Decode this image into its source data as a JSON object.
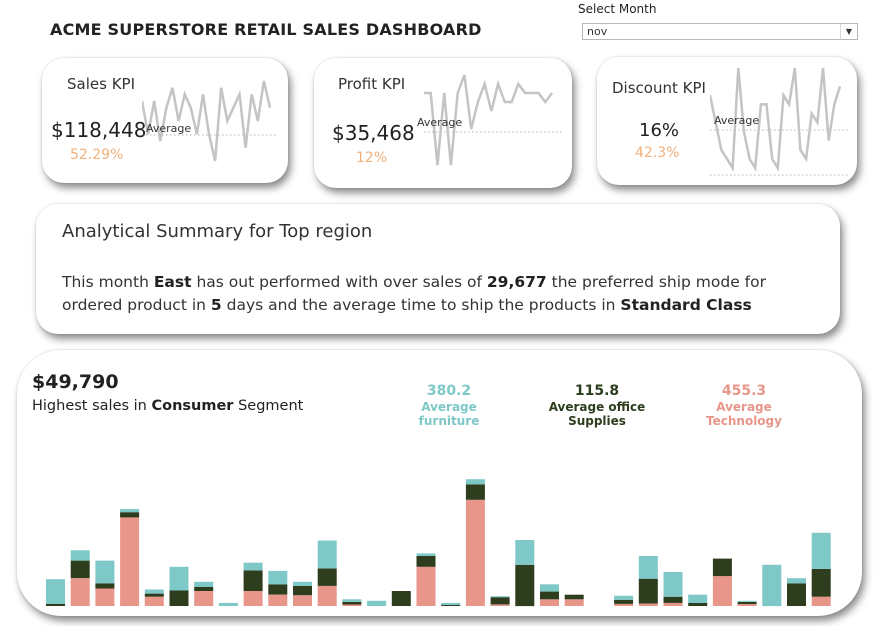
{
  "header": {
    "title": "ACME SUPERSTORE  RETAIL SALES DASHBOARD",
    "select_label": "Select Month",
    "select_value": "nov"
  },
  "kpis": {
    "sales": {
      "label": "Sales KPI",
      "value": "$118,448",
      "pct": "52.29%",
      "avg_label": "Average"
    },
    "profit": {
      "label": "Profit KPI",
      "value": "$35,468",
      "pct": "12%",
      "avg_label": "Average"
    },
    "discount": {
      "label": "Discount KPI",
      "value": "16%",
      "pct": "42.3%",
      "avg_label": "Average"
    }
  },
  "summary": {
    "title": "Analytical Summary for Top region",
    "p1": "This month ",
    "region": "East",
    "p2": " has out performed with over sales of ",
    "sales": "29,677",
    "p3": " the preferred ship mode for ordered product in ",
    "days": "5",
    "p4": " days and the average time to ship the products in ",
    "ship_mode": "Standard Class"
  },
  "segment": {
    "value": "$49,790",
    "text_pre": "Highest sales in ",
    "segment_name": "Consumer",
    "text_post": " Segment"
  },
  "averages": [
    {
      "value": "380.2",
      "label": "Average furniture",
      "color": "#7ec8c8"
    },
    {
      "value": "115.8",
      "label": "Average office Supplies",
      "color": "#2d3d1e"
    },
    {
      "value": "455.3",
      "label": "Average Technology",
      "color": "#e8968a"
    }
  ],
  "sparklines": {
    "sales": [
      110,
      60,
      110,
      50,
      100,
      130,
      80,
      120,
      100,
      60,
      120,
      60,
      20,
      130,
      80,
      100,
      120,
      40,
      120,
      80,
      140,
      100
    ],
    "profit": [
      100,
      100,
      20,
      100,
      20,
      100,
      120,
      60,
      90,
      110,
      80,
      110,
      90,
      90,
      110,
      100,
      100,
      100,
      90,
      100
    ],
    "discount": [
      90,
      60,
      30,
      20,
      10,
      120,
      50,
      20,
      10,
      80,
      80,
      20,
      10,
      90,
      80,
      120,
      30,
      20,
      70,
      60,
      120,
      40,
      80,
      100
    ]
  },
  "chart_data": {
    "type": "bar",
    "stacked": true,
    "series": [
      {
        "name": "Technology",
        "color": "#e8968a",
        "values": [
          0,
          270,
          170,
          860,
          90,
          0,
          145,
          0,
          145,
          110,
          105,
          195,
          15,
          0,
          0,
          380,
          0,
          1030,
          15,
          0,
          65,
          65,
          0,
          20,
          25,
          30,
          0,
          290,
          20,
          0,
          0,
          90
        ]
      },
      {
        "name": "office Supplies",
        "color": "#2d3d1e",
        "values": [
          20,
          170,
          50,
          50,
          30,
          150,
          40,
          0,
          200,
          100,
          90,
          170,
          25,
          0,
          145,
          105,
          10,
          150,
          70,
          400,
          75,
          45,
          0,
          40,
          240,
          60,
          30,
          170,
          20,
          0,
          220,
          270
        ]
      },
      {
        "name": "furniture",
        "color": "#7ec8c8",
        "values": [
          240,
          100,
          220,
          30,
          40,
          230,
          50,
          30,
          75,
          130,
          40,
          270,
          25,
          50,
          0,
          25,
          20,
          50,
          10,
          240,
          70,
          0,
          0,
          40,
          220,
          240,
          80,
          0,
          10,
          400,
          50,
          350
        ]
      }
    ],
    "ylim": [
      0,
      1600
    ]
  }
}
